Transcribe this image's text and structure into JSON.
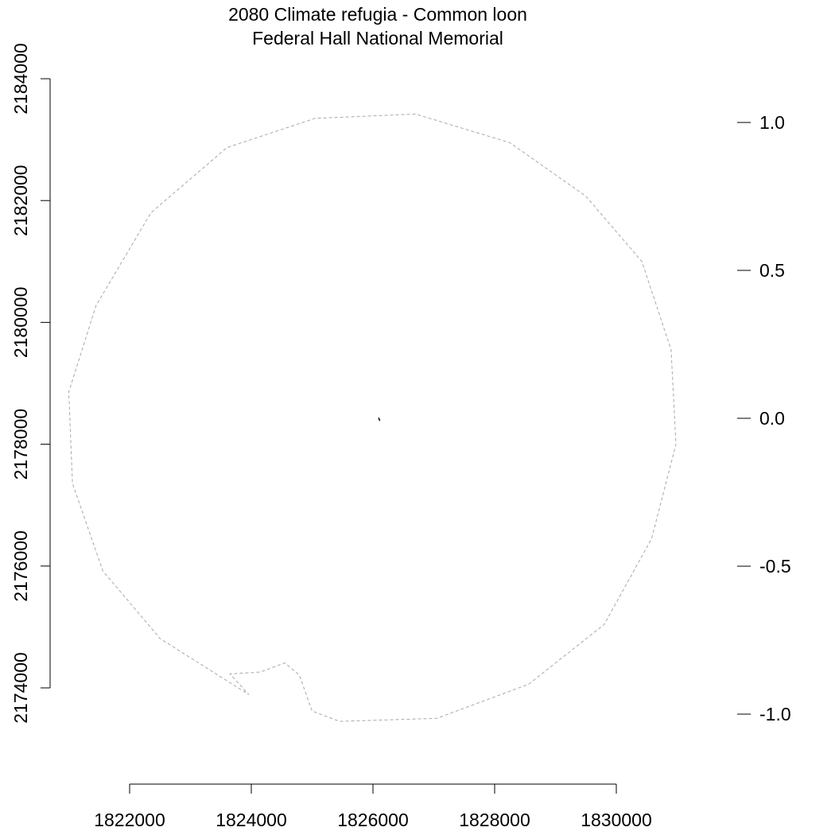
{
  "chart_data": {
    "type": "map",
    "title": "2080 Climate refugia - Common loon",
    "subtitle": "Federal Hall National Memorial",
    "x_axis": {
      "ticks": [
        1822000,
        1824000,
        1826000,
        1828000,
        1830000
      ],
      "tick_labels": [
        "1822000",
        "1824000",
        "1826000",
        "1828000",
        "1830000"
      ],
      "range": [
        1822000,
        1830000
      ]
    },
    "y_axis": {
      "ticks": [
        2174000,
        2176000,
        2178000,
        2180000,
        2182000,
        2184000
      ],
      "tick_labels": [
        "2174000",
        "2176000",
        "2178000",
        "2180000",
        "2182000",
        "2184000"
      ],
      "range": [
        2174000,
        2184000
      ]
    },
    "legend_scale": {
      "ticks": [
        1.0,
        0.5,
        0.0,
        -0.5,
        -1.0
      ],
      "tick_labels": [
        "1.0",
        "0.5",
        "0.0",
        "-0.5",
        "-1.0"
      ],
      "range": [
        -1.0,
        1.0
      ]
    },
    "buffer_boundary": [
      [
        1826700,
        2183420
      ],
      [
        1825050,
        2183350
      ],
      [
        1823600,
        2182870
      ],
      [
        1822350,
        2181800
      ],
      [
        1821450,
        2180280
      ],
      [
        1821000,
        2178860
      ],
      [
        1821060,
        2177360
      ],
      [
        1821560,
        2175920
      ],
      [
        1822500,
        2174810
      ],
      [
        1823960,
        2173890
      ],
      [
        1823650,
        2174230
      ],
      [
        1824150,
        2174260
      ],
      [
        1824550,
        2174410
      ],
      [
        1824790,
        2174210
      ],
      [
        1825000,
        2173620
      ],
      [
        1825450,
        2173450
      ],
      [
        1827050,
        2173500
      ],
      [
        1828560,
        2174060
      ],
      [
        1829800,
        2175040
      ],
      [
        1830580,
        2176450
      ],
      [
        1830980,
        2178000
      ],
      [
        1830900,
        2179550
      ],
      [
        1830420,
        2181000
      ],
      [
        1829500,
        2182070
      ],
      [
        1828250,
        2182950
      ],
      [
        1826700,
        2183420
      ]
    ],
    "park_polygon": [
      [
        1826090,
        2178430
      ],
      [
        1826100,
        2178430
      ],
      [
        1826115,
        2178390
      ],
      [
        1826105,
        2178390
      ],
      [
        1826090,
        2178430
      ]
    ]
  }
}
